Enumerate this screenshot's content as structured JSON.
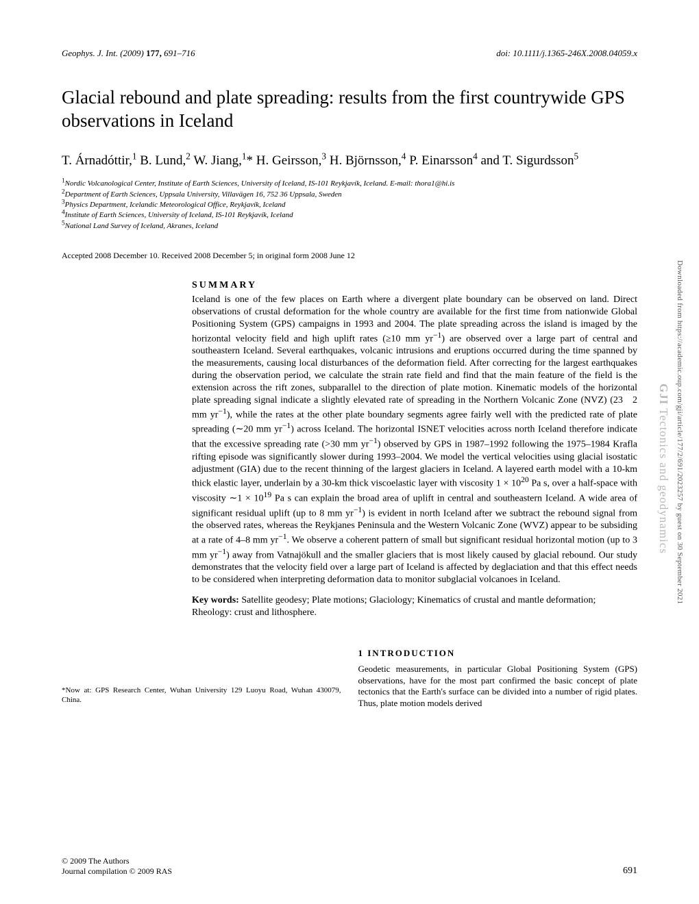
{
  "header": {
    "journal_ref": "Geophys. J. Int.",
    "year_vol": "(2009)",
    "volume": "177,",
    "pages": "691–716",
    "doi": "doi: 10.1111/j.1365-246X.2008.04059.x"
  },
  "title": "Glacial rebound and plate spreading: results from the first countrywide GPS observations in Iceland",
  "authors_html": "T. Árnadóttir,<span class=\"sup\">1</span> B. Lund,<span class=\"sup\">2</span> W. Jiang,<span class=\"sup\">1</span>* H. Geirsson,<span class=\"sup\">3</span> H. Björnsson,<span class=\"sup\">4</span> P. Einarsson<span class=\"sup\">4</span> and T. Sigurdsson<span class=\"sup\">5</span>",
  "affiliations": [
    {
      "num": "1",
      "text_html": "<i>Nordic Volcanological Center, Institute of Earth Sciences, University of Iceland,</i> IS-101 <i>Reykjavík, Iceland. E-mail: thora1@hi.is</i>"
    },
    {
      "num": "2",
      "text_html": "<i>Department of Earth Sciences, Uppsala University, Villavägen</i> 16, 752 36 <i>Uppsala, Sweden</i>"
    },
    {
      "num": "3",
      "text_html": "<i>Physics Department, Icelandic Meteorological Office, Reykjavík, Iceland</i>"
    },
    {
      "num": "4",
      "text_html": "<i>Institute of Earth Sciences, University of Iceland,</i> IS-101 <i>Reykjavík, Iceland</i>"
    },
    {
      "num": "5",
      "text_html": "<i>National Land Survey of Iceland, Akranes, Iceland</i>"
    }
  ],
  "accepted": "Accepted 2008 December 10. Received 2008 December 5; in original form 2008 June 12",
  "summary": {
    "heading": "SUMMARY",
    "text_html": "Iceland is one of the few places on Earth where a divergent plate boundary can be observed on land. Direct observations of crustal deformation for the whole country are available for the first time from nationwide Global Positioning System (GPS) campaigns in 1993 and 2004. The plate spreading across the island is imaged by the horizontal velocity field and high uplift rates (≥10 mm yr<sup>−1</sup>) are observed over a large part of central and southeastern Iceland. Several earthquakes, volcanic intrusions and eruptions occurred during the time spanned by the measurements, causing local disturbances of the deformation field. After correcting for the largest earthquakes during the observation period, we calculate the strain rate field and find that the main feature of the field is the extension across the rift zones, subparallel to the direction of plate motion. Kinematic models of the horizontal plate spreading signal indicate a slightly elevated rate of spreading in the Northern Volcanic Zone (NVZ) (23&nbsp;&nbsp;&nbsp;2 mm yr<sup>−1</sup>), while the rates at the other plate boundary segments agree fairly well with the predicted rate of plate spreading (∼20 mm yr<sup>−1</sup>) across Iceland. The horizontal ISNET velocities across north Iceland therefore indicate that the excessive spreading rate (>30 mm yr<sup>−1</sup>) observed by GPS in 1987–1992 following the 1975–1984 Krafla rifting episode was significantly slower during 1993–2004. We model the vertical velocities using glacial isostatic adjustment (GIA) due to the recent thinning of the largest glaciers in Iceland. A layered earth model with a 10-km thick elastic layer, underlain by a 30-km thick viscoelastic layer with viscosity 1 × 10<sup>20</sup> Pa s, over a half-space with viscosity ∼1 × 10<sup>19</sup> Pa s can explain the broad area of uplift in central and southeastern Iceland. A wide area of significant residual uplift (up to 8 mm yr<sup>−1</sup>) is evident in north Iceland after we subtract the rebound signal from the observed rates, whereas the Reykjanes Peninsula and the Western Volcanic Zone (WVZ) appear to be subsiding at a rate of 4–8 mm yr<sup>−1</sup>. We observe a coherent pattern of small but significant residual horizontal motion (up to 3 mm yr<sup>−1</sup>) away from Vatnajökull and the smaller glaciers that is most likely caused by glacial rebound. Our study demonstrates that the velocity field over a large part of Iceland is affected by deglaciation and that this effect needs to be considered when interpreting deformation data to monitor subglacial volcanoes in Iceland."
  },
  "keywords": {
    "label": "Key words:",
    "text": " Satellite geodesy; Plate motions; Glaciology; Kinematics of crustal and mantle deformation; Rheology: crust and lithosphere."
  },
  "footnote": "*Now at: GPS Research Center, Wuhan University 129 Luoyu Road, Wuhan 430079, China.",
  "introduction": {
    "heading": "1 INTRODUCTION",
    "text": "Geodetic measurements, in particular Global Positioning System (GPS) observations, have for the most part confirmed the basic concept of plate tectonics that the Earth's surface can be divided into a number of rigid plates. Thus, plate motion models derived"
  },
  "footer": {
    "copyright_line1": "© 2009 The Authors",
    "copyright_line2": "Journal compilation © 2009 RAS",
    "page_number": "691"
  },
  "side": {
    "download_text": "Downloaded from https://academic.oup.com/gji/article/177/2/691/2023257 by guest on 30 September 2021",
    "label_prefix": "GJI",
    "label_rest": " Tectonics and geodynamics"
  }
}
